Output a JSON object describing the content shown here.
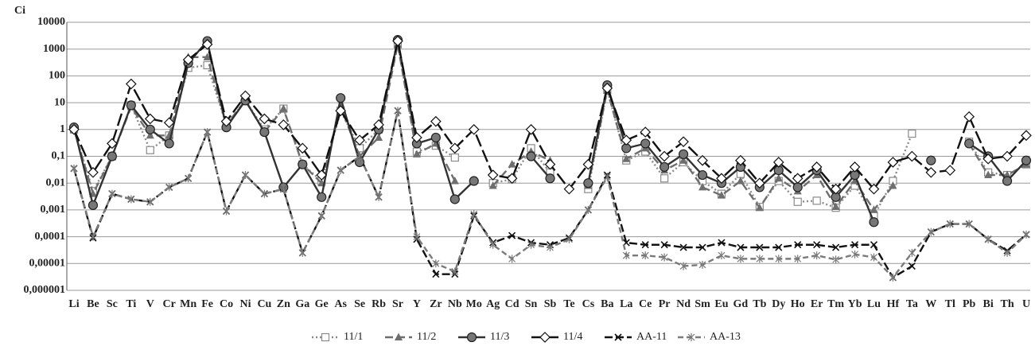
{
  "chart_data": {
    "type": "line",
    "y_label": "Ci",
    "log_scale": true,
    "grid": true,
    "legend": "bottom",
    "categories": [
      "Li",
      "Be",
      "Sc",
      "Ti",
      "V",
      "Cr",
      "Mn",
      "Fe",
      "Co",
      "Ni",
      "Cu",
      "Zn",
      "Ga",
      "Ge",
      "As",
      "Se",
      "Rb",
      "Sr",
      "Y",
      "Zr",
      "Nb",
      "Mo",
      "Ag",
      "Cd",
      "Sn",
      "Sb",
      "Te",
      "Cs",
      "Ba",
      "La",
      "Ce",
      "Pr",
      "Nd",
      "Sm",
      "Eu",
      "Gd",
      "Tb",
      "Dy",
      "Ho",
      "Er",
      "Tm",
      "Yb",
      "Lu",
      "Hf",
      "Ta",
      "W",
      "Tl",
      "Pb",
      "Bi",
      "Th",
      "U"
    ],
    "ylim": [
      1e-06,
      10000
    ],
    "yticks": [
      {
        "value": 1e-06,
        "label": "0,000001"
      },
      {
        "value": 1e-05,
        "label": "0,00001"
      },
      {
        "value": 0.0001,
        "label": "0,0001"
      },
      {
        "value": 0.001,
        "label": "0,001"
      },
      {
        "value": 0.01,
        "label": "0,01"
      },
      {
        "value": 0.1,
        "label": "0,1"
      },
      1,
      10,
      100,
      1000,
      10000
    ],
    "series": [
      {
        "name": "11/1",
        "color": "#8a8a8a",
        "dash": "2 3",
        "marker": "square",
        "values": [
          1,
          0.005,
          0.1,
          8,
          0.17,
          0.6,
          200,
          250,
          1.5,
          12,
          1,
          6,
          0.05,
          0.012,
          5,
          0.2,
          1,
          1500,
          0.15,
          0.25,
          0.09,
          null,
          0.01,
          0.014,
          0.2,
          0.025,
          null,
          0.006,
          30,
          0.07,
          0.15,
          0.015,
          0.06,
          0.012,
          0.004,
          0.022,
          0.0013,
          0.012,
          0.002,
          0.0022,
          0.0012,
          0.008,
          0.0006,
          0.012,
          0.7,
          null,
          null,
          0.35,
          0.025,
          0.02,
          0.05
        ]
      },
      {
        "name": "11/2",
        "color": "#6e6e6e",
        "dash": "10 5",
        "marker": "triangle",
        "values": [
          1,
          0.004,
          0.1,
          7,
          0.6,
          0.6,
          500,
          500,
          1.5,
          12,
          0.8,
          6,
          0.05,
          0.01,
          7,
          0.1,
          0.5,
          1500,
          0.12,
          0.3,
          0.012,
          null,
          0.008,
          0.05,
          0.15,
          0.07,
          null,
          0.008,
          30,
          0.08,
          0.2,
          0.03,
          0.07,
          0.007,
          0.0035,
          0.012,
          0.0012,
          0.015,
          0.005,
          0.02,
          0.0013,
          0.012,
          0.001,
          0.008,
          null,
          null,
          null,
          0.3,
          0.02,
          0.02,
          0.05
        ]
      },
      {
        "name": "11/3",
        "color": "#333333",
        "dash": "",
        "marker": "circle",
        "values": [
          1.2,
          0.0015,
          0.1,
          8,
          1,
          0.3,
          300,
          2000,
          1.2,
          12,
          0.8,
          0.007,
          0.05,
          0.003,
          15,
          0.06,
          1,
          2200,
          0.3,
          0.5,
          0.0025,
          0.012,
          null,
          null,
          0.1,
          0.015,
          null,
          0.01,
          45,
          0.2,
          0.3,
          0.04,
          0.12,
          0.02,
          0.01,
          0.04,
          0.007,
          0.03,
          0.007,
          0.03,
          0.003,
          0.02,
          0.00035,
          null,
          null,
          0.07,
          null,
          0.3,
          0.1,
          0.012,
          0.07
        ]
      },
      {
        "name": "11/4",
        "color": "#111111",
        "dash": "16 5",
        "marker": "diamond",
        "values": [
          1,
          0.025,
          0.3,
          50,
          2.5,
          1.8,
          400,
          1500,
          2,
          18,
          2.5,
          1.5,
          0.2,
          0.02,
          5,
          0.4,
          1.5,
          2000,
          0.5,
          2,
          0.2,
          1,
          0.02,
          0.015,
          1,
          0.05,
          0.006,
          0.05,
          35,
          0.4,
          0.8,
          0.1,
          0.35,
          0.07,
          0.015,
          0.07,
          0.01,
          0.06,
          0.015,
          0.04,
          0.006,
          0.04,
          0.006,
          0.06,
          0.1,
          0.025,
          0.03,
          3,
          0.08,
          0.1,
          0.6
        ]
      },
      {
        "name": "AA-11",
        "color": "#111111",
        "dash": "10 4",
        "marker": "x",
        "values": [
          0.035,
          9e-05,
          0.004,
          0.0025,
          0.002,
          0.007,
          0.015,
          0.8,
          0.0009,
          0.02,
          0.004,
          0.006,
          2.5e-05,
          0.0006,
          0.03,
          0.1,
          0.003,
          5,
          8e-05,
          4e-06,
          4e-06,
          0.0006,
          6e-05,
          0.00011,
          6e-05,
          5e-05,
          9e-05,
          0.001,
          0.02,
          6e-05,
          5e-05,
          5e-05,
          4e-05,
          4e-05,
          6e-05,
          4e-05,
          4e-05,
          4e-05,
          5e-05,
          5e-05,
          4e-05,
          5e-05,
          5e-05,
          3e-06,
          8e-06,
          0.00015,
          0.0003,
          0.0003,
          8e-05,
          3e-05,
          0.00012
        ]
      },
      {
        "name": "AA-13",
        "color": "#7a7a7a",
        "dash": "7 4",
        "marker": "asterisk",
        "values": [
          0.035,
          0.0001,
          0.004,
          0.0025,
          0.002,
          0.007,
          0.015,
          0.8,
          0.0009,
          0.02,
          0.004,
          0.006,
          2.5e-05,
          0.0006,
          0.03,
          0.1,
          0.003,
          5,
          0.0001,
          1e-05,
          5e-06,
          0.0007,
          5e-05,
          1.5e-05,
          5e-05,
          4e-05,
          8e-05,
          0.001,
          0.017,
          2e-05,
          2e-05,
          1.7e-05,
          8e-06,
          9e-06,
          2e-05,
          1.5e-05,
          1.5e-05,
          1.5e-05,
          1.5e-05,
          2e-05,
          1.4e-05,
          2.2e-05,
          1.7e-05,
          3e-06,
          2.5e-05,
          0.00015,
          0.0003,
          0.0003,
          8e-05,
          2.5e-05,
          0.00012
        ]
      }
    ]
  }
}
